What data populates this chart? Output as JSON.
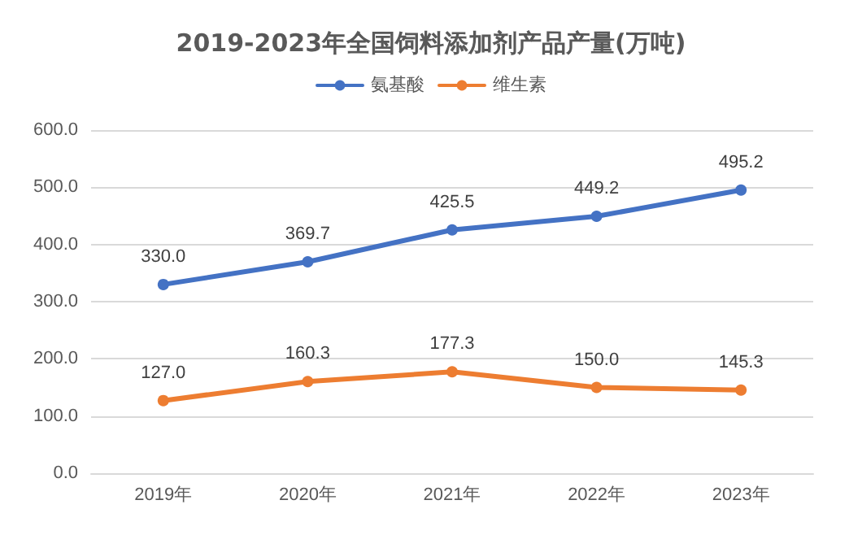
{
  "chart_data": {
    "type": "line",
    "title": "2019-2023年全国饲料添加剂产品产量(万吨)",
    "categories": [
      "2019年",
      "2020年",
      "2021年",
      "2022年",
      "2023年"
    ],
    "series": [
      {
        "name": "氨基酸",
        "color": "#4472c4",
        "values": [
          330.0,
          369.7,
          425.5,
          449.2,
          495.2
        ],
        "value_labels": [
          "330.0",
          "369.7",
          "425.5",
          "449.2",
          "495.2"
        ]
      },
      {
        "name": "维生素",
        "color": "#ed7d31",
        "values": [
          127.0,
          160.3,
          177.3,
          150.0,
          145.3
        ],
        "value_labels": [
          "127.0",
          "160.3",
          "177.3",
          "150.0",
          "145.3"
        ]
      }
    ],
    "ylim": [
      0,
      600
    ],
    "yticks": [
      {
        "value": 0,
        "label": "0.0"
      },
      {
        "value": 100,
        "label": "100.0"
      },
      {
        "value": 200,
        "label": "200.0"
      },
      {
        "value": 300,
        "label": "300.0"
      },
      {
        "value": 400,
        "label": "400.0"
      },
      {
        "value": 500,
        "label": "500.0"
      },
      {
        "value": 600,
        "label": "600.0"
      }
    ],
    "grid": "y",
    "legend": "top",
    "marker": "circle",
    "line_style": "solid"
  }
}
